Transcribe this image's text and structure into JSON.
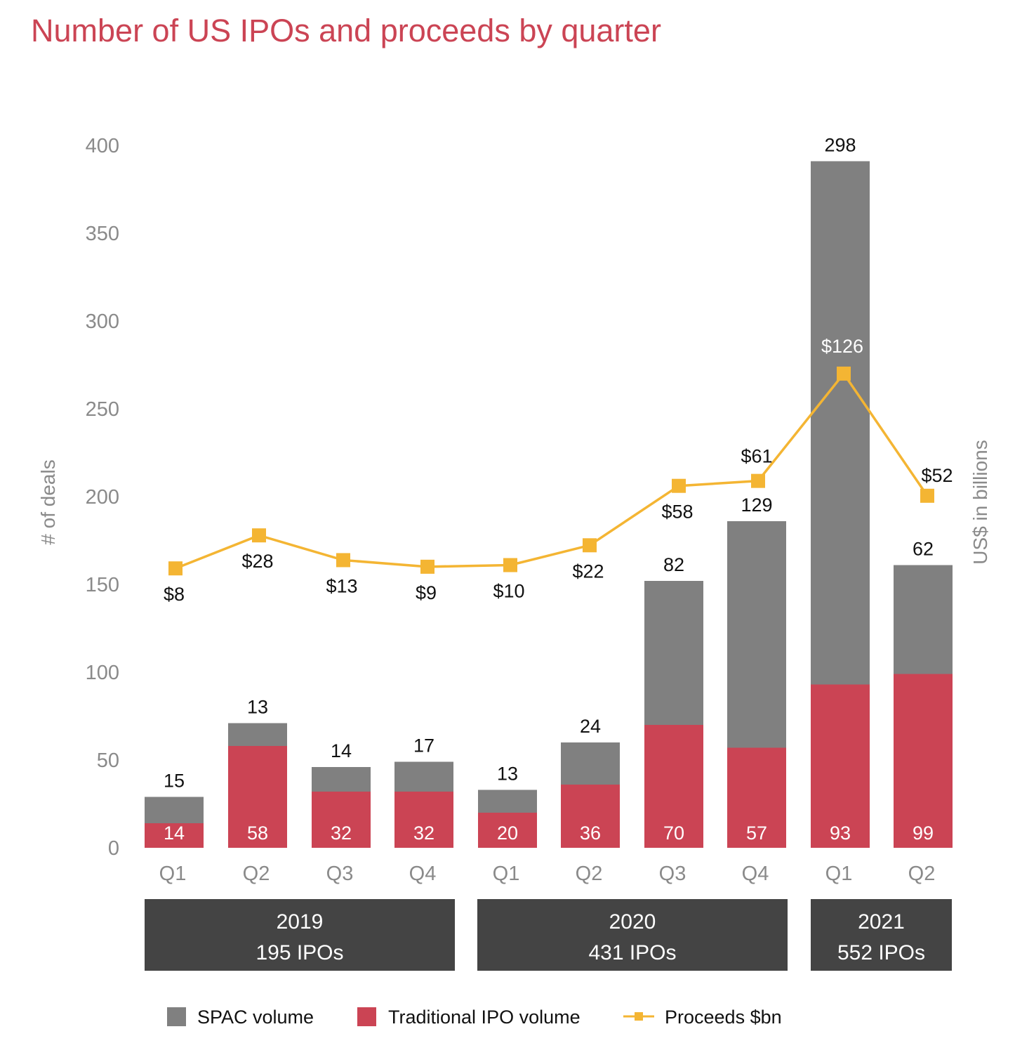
{
  "chart_data": {
    "type": "bar",
    "stacked": true,
    "title": "Number of US IPOs and proceeds by quarter",
    "categories": [
      "Q1",
      "Q2",
      "Q3",
      "Q4",
      "Q1",
      "Q2",
      "Q3",
      "Q4",
      "Q1",
      "Q2"
    ],
    "series": [
      {
        "name": "Traditional IPO volume",
        "type": "bar",
        "color": "#cb4454",
        "values": [
          14,
          58,
          32,
          32,
          20,
          36,
          70,
          57,
          93,
          99
        ]
      },
      {
        "name": "SPAC volume",
        "type": "bar",
        "color": "#808080",
        "values": [
          15,
          13,
          14,
          17,
          13,
          24,
          82,
          129,
          298,
          62
        ]
      },
      {
        "name": "Proceeds $bn",
        "type": "line",
        "color": "#f4b533",
        "axis": "right",
        "values": [
          8,
          28,
          13,
          9,
          10,
          22,
          58,
          61,
          126,
          52
        ],
        "labels": [
          "$8",
          "$28",
          "$13",
          "$9",
          "$10",
          "$22",
          "$58",
          "$61",
          "$126",
          "$52"
        ]
      }
    ],
    "ylabel": "# of deals",
    "ylabel_right": "US$ in billions",
    "ylim": [
      0,
      400
    ],
    "yticks": [
      0,
      50,
      100,
      150,
      200,
      250,
      300,
      350,
      400
    ],
    "groups": [
      {
        "year": "2019",
        "ipos": "195 IPOs"
      },
      {
        "year": "2020",
        "ipos": "431 IPOs"
      },
      {
        "year": "2021",
        "ipos": "552 IPOs"
      }
    ],
    "legend_position": "bottom",
    "grid": false
  }
}
